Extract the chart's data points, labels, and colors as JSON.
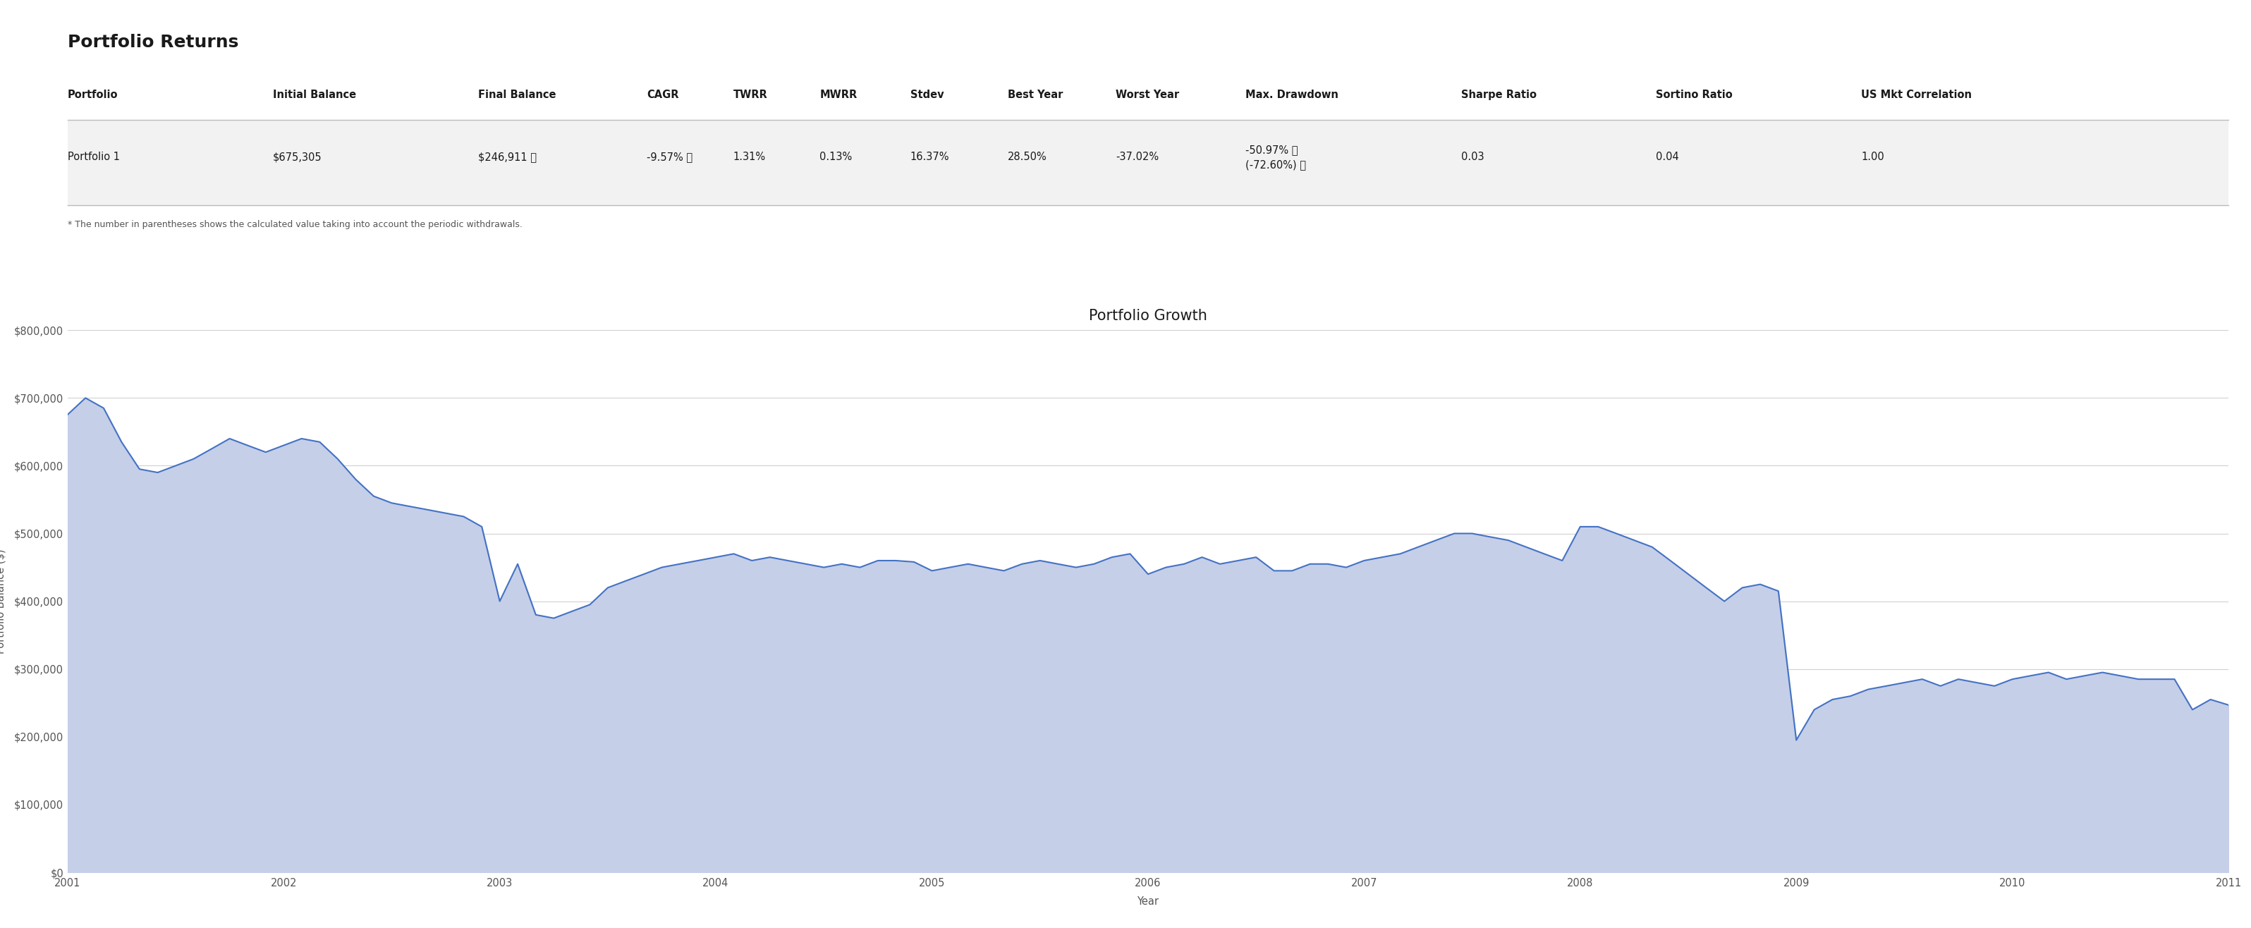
{
  "title_table": "Portfolio Returns",
  "chart_title": "Portfolio Growth",
  "xlabel": "Year",
  "ylabel": "Portfolio Balance ($)",
  "table_headers": [
    "Portfolio",
    "Initial Balance",
    "Final Balance",
    "CAGR",
    "TWRR",
    "MWRR",
    "Stdev",
    "Best Year",
    "Worst Year",
    "Max. Drawdown",
    "Sharpe Ratio",
    "Sortino Ratio",
    "US Mkt Correlation"
  ],
  "table_row": [
    "Portfolio 1",
    "$675,305",
    "$246,911 ⓘ",
    "-9.57% ⓘ",
    "1.31%",
    "0.13%",
    "16.37%",
    "28.50%",
    "-37.02%",
    "-50.97% ⓘ\n(-72.60%) ⓘ",
    "0.03",
    "0.04",
    "1.00"
  ],
  "footnote": "* The number in parentheses shows the calculated value taking into account the periodic withdrawals.",
  "line_color": "#4472c4",
  "fill_color": "#c5cfe8",
  "background_color": "#ffffff",
  "grid_color": "#d0d0d0",
  "ylim": [
    0,
    800000
  ],
  "yticks": [
    0,
    100000,
    200000,
    300000,
    400000,
    500000,
    600000,
    700000,
    800000
  ],
  "ytick_labels": [
    "$0",
    "$100,000",
    "$200,000",
    "$300,000",
    "$400,000",
    "$500,000",
    "$600,000",
    "$700,000",
    "$800,000"
  ],
  "x_data": [
    2001.0,
    2001.083,
    2001.167,
    2001.25,
    2001.333,
    2001.417,
    2001.5,
    2001.583,
    2001.667,
    2001.75,
    2001.833,
    2001.917,
    2002.0,
    2002.083,
    2002.167,
    2002.25,
    2002.333,
    2002.417,
    2002.5,
    2002.583,
    2002.667,
    2002.75,
    2002.833,
    2002.917,
    2003.0,
    2003.083,
    2003.167,
    2003.25,
    2003.333,
    2003.417,
    2003.5,
    2003.583,
    2003.667,
    2003.75,
    2003.833,
    2003.917,
    2004.0,
    2004.083,
    2004.167,
    2004.25,
    2004.333,
    2004.417,
    2004.5,
    2004.583,
    2004.667,
    2004.75,
    2004.833,
    2004.917,
    2005.0,
    2005.083,
    2005.167,
    2005.25,
    2005.333,
    2005.417,
    2005.5,
    2005.583,
    2005.667,
    2005.75,
    2005.833,
    2005.917,
    2006.0,
    2006.083,
    2006.167,
    2006.25,
    2006.333,
    2006.417,
    2006.5,
    2006.583,
    2006.667,
    2006.75,
    2006.833,
    2006.917,
    2007.0,
    2007.083,
    2007.167,
    2007.25,
    2007.333,
    2007.417,
    2007.5,
    2007.583,
    2007.667,
    2007.75,
    2007.833,
    2007.917,
    2008.0,
    2008.083,
    2008.167,
    2008.25,
    2008.333,
    2008.417,
    2008.5,
    2008.583,
    2008.667,
    2008.75,
    2008.833,
    2008.917,
    2009.0,
    2009.083,
    2009.167,
    2009.25,
    2009.333,
    2009.417,
    2009.5,
    2009.583,
    2009.667,
    2009.75,
    2009.833,
    2009.917,
    2010.0,
    2010.083,
    2010.167,
    2010.25,
    2010.333,
    2010.417,
    2010.5,
    2010.583,
    2010.667,
    2010.75,
    2010.833,
    2010.917,
    2011.0
  ],
  "y_data": [
    675305,
    700000,
    685000,
    635000,
    595000,
    590000,
    600000,
    610000,
    625000,
    640000,
    630000,
    620000,
    630000,
    640000,
    635000,
    610000,
    580000,
    555000,
    545000,
    540000,
    535000,
    530000,
    525000,
    510000,
    400000,
    455000,
    380000,
    375000,
    385000,
    395000,
    420000,
    430000,
    440000,
    450000,
    455000,
    460000,
    465000,
    470000,
    460000,
    465000,
    460000,
    455000,
    450000,
    455000,
    450000,
    460000,
    460000,
    458000,
    445000,
    450000,
    455000,
    450000,
    445000,
    455000,
    460000,
    455000,
    450000,
    455000,
    465000,
    470000,
    440000,
    450000,
    455000,
    465000,
    455000,
    460000,
    465000,
    445000,
    445000,
    455000,
    455000,
    450000,
    460000,
    465000,
    470000,
    480000,
    490000,
    500000,
    500000,
    495000,
    490000,
    480000,
    470000,
    460000,
    510000,
    510000,
    500000,
    490000,
    480000,
    460000,
    440000,
    420000,
    400000,
    420000,
    425000,
    415000,
    195000,
    240000,
    255000,
    260000,
    270000,
    275000,
    280000,
    285000,
    275000,
    285000,
    280000,
    275000,
    285000,
    290000,
    295000,
    285000,
    290000,
    295000,
    290000,
    285000,
    285000,
    285000,
    240000,
    255000,
    246911
  ]
}
